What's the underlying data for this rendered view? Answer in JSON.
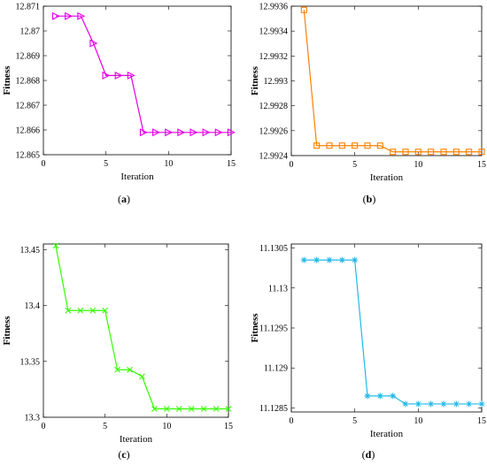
{
  "chart_data": [
    {
      "type": "line",
      "caption": "a",
      "color": "#e600e6",
      "marker": "triangle-right",
      "xlabel": "Iteration",
      "ylabel": "Fitness",
      "xlim": [
        0,
        15
      ],
      "ylim": [
        12.865,
        12.871
      ],
      "xticks": [
        0,
        5,
        10,
        15
      ],
      "yticks": [
        12.865,
        12.866,
        12.867,
        12.868,
        12.869,
        12.87,
        12.871
      ],
      "ytick_labels": [
        "12.865",
        "12.866",
        "12.867",
        "12.868",
        "12.869",
        "12.87",
        "12.871"
      ],
      "x": [
        1,
        2,
        3,
        4,
        5,
        6,
        7,
        8,
        9,
        10,
        11,
        12,
        13,
        14,
        15
      ],
      "y": [
        12.8706,
        12.8706,
        12.8706,
        12.8695,
        12.8682,
        12.8682,
        12.8682,
        12.8659,
        12.8659,
        12.8659,
        12.8659,
        12.8659,
        12.8659,
        12.8659,
        12.8659
      ]
    },
    {
      "type": "line",
      "caption": "b",
      "color": "#ff8000",
      "marker": "square",
      "xlabel": "Iteration",
      "ylabel": "Fitness",
      "xlim": [
        0,
        15
      ],
      "ylim": [
        12.9924,
        12.9936
      ],
      "xticks": [
        0,
        5,
        10,
        15
      ],
      "yticks": [
        12.9924,
        12.9926,
        12.9928,
        12.993,
        12.9932,
        12.9934,
        12.9936
      ],
      "ytick_labels": [
        "12.9924",
        "12.9926",
        "12.9928",
        "12.993",
        "12.9932",
        "12.9934",
        "12.9936"
      ],
      "x": [
        1,
        2,
        3,
        4,
        5,
        6,
        7,
        8,
        9,
        10,
        11,
        12,
        13,
        14,
        15
      ],
      "y": [
        12.99357,
        12.99248,
        12.99248,
        12.99248,
        12.99248,
        12.99248,
        12.99248,
        12.99243,
        12.99243,
        12.99243,
        12.99243,
        12.99243,
        12.99243,
        12.99243,
        12.99243
      ]
    },
    {
      "type": "line",
      "caption": "c",
      "color": "#33ff00",
      "marker": "x",
      "xlabel": "Iteration",
      "ylabel": "Fitness",
      "xlim": [
        0,
        15
      ],
      "ylim": [
        13.3,
        13.455
      ],
      "xticks": [
        0,
        5,
        10,
        15
      ],
      "yticks": [
        13.3,
        13.35,
        13.4,
        13.45
      ],
      "ytick_labels": [
        "13.3",
        "13.35",
        "13.4",
        "13.45"
      ],
      "x": [
        1,
        2,
        3,
        4,
        5,
        6,
        7,
        8,
        9,
        10,
        11,
        12,
        13,
        14,
        15
      ],
      "y": [
        13.4535,
        13.3955,
        13.3955,
        13.3955,
        13.3955,
        13.3425,
        13.3425,
        13.3365,
        13.3075,
        13.3075,
        13.3075,
        13.3075,
        13.3075,
        13.3075,
        13.3075
      ]
    },
    {
      "type": "line",
      "caption": "d",
      "color": "#22b8e8",
      "marker": "asterisk",
      "xlabel": "Iteration",
      "ylabel": "Fitness",
      "xlim": [
        0,
        15
      ],
      "ylim": [
        11.12845,
        11.13055
      ],
      "xticks": [
        0,
        5,
        10,
        15
      ],
      "yticks": [
        11.1285,
        11.129,
        11.1295,
        11.13,
        11.1305
      ],
      "ytick_labels": [
        "11.1285",
        "11.129",
        "11.1295",
        "11.13",
        "11.1305"
      ],
      "x": [
        1,
        2,
        3,
        4,
        5,
        6,
        7,
        8,
        9,
        10,
        11,
        12,
        13,
        14,
        15
      ],
      "y": [
        11.13035,
        11.13035,
        11.13035,
        11.13035,
        11.13035,
        11.12865,
        11.12865,
        11.12865,
        11.12855,
        11.12855,
        11.12855,
        11.12855,
        11.12855,
        11.12855,
        11.12855
      ]
    }
  ]
}
